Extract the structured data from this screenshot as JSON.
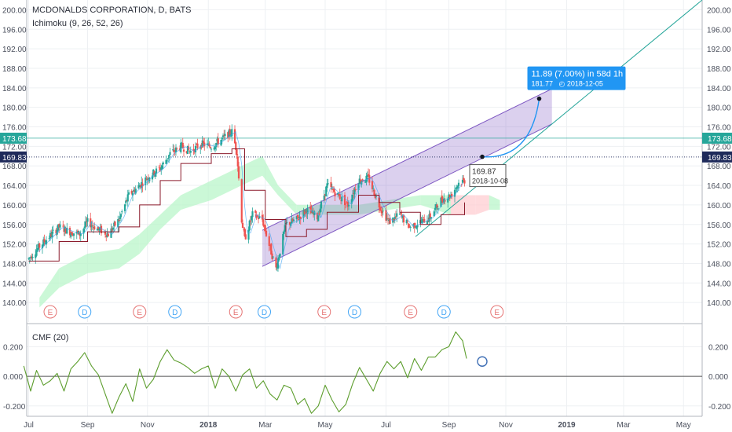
{
  "header": {
    "title": "MCDONALDS CORPORATION, D, BATS",
    "indicator": "Ichimoku (9, 26, 52, 26)",
    "cmf_label": "CMF (20)"
  },
  "chart_data": [
    {
      "type": "candlestick",
      "title": "MCDONALDS CORPORATION, D, BATS",
      "indicator": "Ichimoku (9, 26, 52, 26)",
      "ylim": [
        136,
        202
      ],
      "yticks": [
        "200.00",
        "196.00",
        "192.00",
        "188.00",
        "184.00",
        "180.00",
        "176.00",
        "172.00",
        "168.00",
        "164.00",
        "160.00",
        "156.00",
        "152.00",
        "148.00",
        "144.00",
        "140.00"
      ],
      "xlim": [
        "2017-07-01",
        "2019-05-20"
      ],
      "xticks": [
        {
          "date": "2017-07-03",
          "label": "Jul"
        },
        {
          "date": "2017-09-01",
          "label": "Sep"
        },
        {
          "date": "2017-11-01",
          "label": "Nov"
        },
        {
          "date": "2018-01-02",
          "label": "2018"
        },
        {
          "date": "2018-03-01",
          "label": "Mar"
        },
        {
          "date": "2018-05-01",
          "label": "May"
        },
        {
          "date": "2018-07-02",
          "label": "Jul"
        },
        {
          "date": "2018-09-04",
          "label": "Sep"
        },
        {
          "date": "2018-11-01",
          "label": "Nov"
        },
        {
          "date": "2019-01-02",
          "label": "2019"
        },
        {
          "date": "2019-03-01",
          "label": "Mar"
        },
        {
          "date": "2019-05-01",
          "label": "May"
        }
      ],
      "price_path": [
        [
          "2017-07-03",
          149.0
        ],
        [
          "2017-07-14",
          151.5
        ],
        [
          "2017-07-24",
          153.5
        ],
        [
          "2017-08-03",
          155.5
        ],
        [
          "2017-08-14",
          154.5
        ],
        [
          "2017-08-24",
          154.0
        ],
        [
          "2017-09-01",
          156.5
        ],
        [
          "2017-09-12",
          155.0
        ],
        [
          "2017-09-22",
          154.0
        ],
        [
          "2017-10-03",
          157.0
        ],
        [
          "2017-10-13",
          162.0
        ],
        [
          "2017-10-24",
          164.0
        ],
        [
          "2017-11-03",
          166.0
        ],
        [
          "2017-11-14",
          167.5
        ],
        [
          "2017-11-24",
          170.5
        ],
        [
          "2017-12-05",
          172.0
        ],
        [
          "2017-12-15",
          171.0
        ],
        [
          "2017-12-26",
          172.5
        ],
        [
          "2018-01-05",
          172.0
        ],
        [
          "2018-01-16",
          173.5
        ],
        [
          "2018-01-26",
          175.0
        ],
        [
          "2018-01-31",
          171.0
        ],
        [
          "2018-02-05",
          157.0
        ],
        [
          "2018-02-08",
          153.0
        ],
        [
          "2018-02-16",
          158.0
        ],
        [
          "2018-02-26",
          157.0
        ],
        [
          "2018-03-06",
          151.0
        ],
        [
          "2018-03-12",
          147.0
        ],
        [
          "2018-03-22",
          156.0
        ],
        [
          "2018-04-02",
          157.0
        ],
        [
          "2018-04-12",
          159.0
        ],
        [
          "2018-04-23",
          157.5
        ],
        [
          "2018-05-03",
          164.0
        ],
        [
          "2018-05-14",
          162.0
        ],
        [
          "2018-05-24",
          160.0
        ],
        [
          "2018-06-04",
          165.0
        ],
        [
          "2018-06-14",
          165.5
        ],
        [
          "2018-06-25",
          160.0
        ],
        [
          "2018-07-05",
          156.5
        ],
        [
          "2018-07-16",
          158.0
        ],
        [
          "2018-07-26",
          155.5
        ],
        [
          "2018-08-06",
          156.5
        ],
        [
          "2018-08-16",
          157.5
        ],
        [
          "2018-08-27",
          161.0
        ],
        [
          "2018-09-06",
          162.0
        ],
        [
          "2018-09-14",
          164.5
        ],
        [
          "2018-09-20",
          165.0
        ]
      ],
      "ichimoku_cloud": [
        [
          "2017-07-14",
          139,
          141
        ],
        [
          "2017-08-03",
          143,
          147
        ],
        [
          "2017-09-01",
          146,
          150
        ],
        [
          "2017-10-03",
          147,
          151
        ],
        [
          "2017-10-24",
          150,
          154
        ],
        [
          "2017-11-14",
          155,
          158
        ],
        [
          "2017-12-05",
          159,
          162
        ],
        [
          "2018-01-05",
          161,
          165
        ],
        [
          "2018-02-05",
          164,
          168
        ],
        [
          "2018-02-26",
          166,
          170
        ],
        [
          "2018-03-14",
          162,
          164
        ],
        [
          "2018-04-02",
          158,
          160
        ],
        [
          "2018-05-03",
          158,
          160
        ],
        [
          "2018-06-04",
          158,
          160
        ],
        [
          "2018-07-05",
          159,
          161
        ],
        [
          "2018-08-06",
          160,
          162
        ],
        [
          "2018-09-06",
          158,
          162
        ],
        [
          "2018-10-01",
          158,
          162
        ],
        [
          "2018-10-15",
          159,
          162
        ],
        [
          "2018-10-26",
          159,
          161
        ]
      ],
      "kijun_sen": [
        [
          "2017-07-03",
          148.5
        ],
        [
          "2017-08-03",
          152.5
        ],
        [
          "2017-09-01",
          154.5
        ],
        [
          "2017-10-03",
          155.5
        ],
        [
          "2017-10-24",
          160.0
        ],
        [
          "2017-11-14",
          165.0
        ],
        [
          "2017-12-05",
          168.5
        ],
        [
          "2018-01-05",
          170.5
        ],
        [
          "2018-01-26",
          171.5
        ],
        [
          "2018-02-08",
          163.0
        ],
        [
          "2018-03-01",
          157.0
        ],
        [
          "2018-03-22",
          153.5
        ],
        [
          "2018-04-12",
          155.0
        ],
        [
          "2018-05-03",
          158.5
        ],
        [
          "2018-06-04",
          162.0
        ],
        [
          "2018-06-25",
          160.5
        ],
        [
          "2018-07-16",
          158.5
        ],
        [
          "2018-08-06",
          156.0
        ],
        [
          "2018-08-27",
          158.0
        ],
        [
          "2018-09-20",
          160.5
        ]
      ],
      "earnings_markers": [
        {
          "date": "2017-07-25",
          "label": "E"
        },
        {
          "date": "2017-10-24",
          "label": "E"
        },
        {
          "date": "2018-01-30",
          "label": "E"
        },
        {
          "date": "2018-04-30",
          "label": "E"
        },
        {
          "date": "2018-07-27",
          "label": "E"
        },
        {
          "date": "2018-10-23",
          "label": "E"
        }
      ],
      "dividend_markers": [
        {
          "date": "2017-08-29",
          "label": "D"
        },
        {
          "date": "2017-11-29",
          "label": "D"
        },
        {
          "date": "2018-02-28",
          "label": "D"
        },
        {
          "date": "2018-05-31",
          "label": "D"
        },
        {
          "date": "2018-08-30",
          "label": "D"
        }
      ],
      "price_levels": [
        {
          "value": 173.68,
          "label": "173.68",
          "color": "#26a69a"
        },
        {
          "value": 169.83,
          "label": "169.83",
          "color": "#1e2a5a"
        }
      ],
      "channel": {
        "color": "#7e57c2",
        "upper": [
          [
            "2018-02-26",
            154.8
          ],
          [
            "2018-12-18",
            183.8
          ]
        ],
        "lower": [
          [
            "2018-02-26",
            147.4
          ],
          [
            "2018-12-18",
            176.6
          ]
        ]
      },
      "trendline": {
        "color": "#26a69a",
        "points": [
          [
            "2018-08-01",
            153.5
          ],
          [
            "2019-05-20",
            202.0
          ]
        ]
      },
      "marker_dot": {
        "date": "2018-10-08",
        "price": 169.87
      },
      "date_price_label": {
        "price": "169.87",
        "date": "2018-10-08"
      },
      "projection": {
        "from": {
          "date": "2018-10-08",
          "price": 169.87
        },
        "to": {
          "date": "2018-12-05",
          "price": 181.77
        },
        "label_line1": "11.89 (7.00%) in 58d 1h",
        "label_line2": "181.77",
        "label_date": "2018-12-05",
        "color": "#2196f3"
      },
      "colors": {
        "up": "#26a69a",
        "down": "#ef5350",
        "kijun": "#8b1a2b",
        "tenkan": "#42a5f5",
        "cloud_up": "#b9f6ca",
        "cloud_down": "#ffcdd2"
      }
    },
    {
      "type": "line",
      "title": "CMF (20)",
      "ylim": [
        -0.27,
        0.34
      ],
      "yticks": [
        "0.200",
        "0.000",
        "-0.200"
      ],
      "color": "#5d9e2e",
      "zero_line_color": "#555555",
      "x": [
        "2017-06-28",
        "2017-07-05",
        "2017-07-11",
        "2017-07-18",
        "2017-07-25",
        "2017-08-01",
        "2017-08-08",
        "2017-08-15",
        "2017-08-22",
        "2017-08-29",
        "2017-09-05",
        "2017-09-12",
        "2017-09-19",
        "2017-09-26",
        "2017-10-03",
        "2017-10-10",
        "2017-10-17",
        "2017-10-24",
        "2017-10-31",
        "2017-11-07",
        "2017-11-14",
        "2017-11-21",
        "2017-11-28",
        "2017-12-05",
        "2017-12-12",
        "2017-12-19",
        "2017-12-26",
        "2018-01-02",
        "2018-01-09",
        "2018-01-16",
        "2018-01-23",
        "2018-01-30",
        "2018-02-06",
        "2018-02-13",
        "2018-02-20",
        "2018-02-27",
        "2018-03-06",
        "2018-03-13",
        "2018-03-20",
        "2018-03-27",
        "2018-04-03",
        "2018-04-10",
        "2018-04-17",
        "2018-04-24",
        "2018-05-01",
        "2018-05-08",
        "2018-05-15",
        "2018-05-22",
        "2018-05-29",
        "2018-06-05",
        "2018-06-12",
        "2018-06-19",
        "2018-06-26",
        "2018-07-03",
        "2018-07-10",
        "2018-07-17",
        "2018-07-24",
        "2018-07-31",
        "2018-08-07",
        "2018-08-14",
        "2018-08-21",
        "2018-08-28",
        "2018-09-04",
        "2018-09-11",
        "2018-09-18",
        "2018-09-22"
      ],
      "values": [
        0.07,
        -0.1,
        0.04,
        -0.06,
        -0.03,
        0.02,
        -0.1,
        0.05,
        0.1,
        0.16,
        0.07,
        0.01,
        -0.12,
        -0.25,
        -0.14,
        -0.05,
        -0.17,
        0.05,
        -0.08,
        -0.02,
        0.1,
        0.18,
        0.11,
        0.09,
        0.06,
        0.02,
        0.05,
        0.07,
        -0.08,
        0.05,
        0.0,
        -0.1,
        0.01,
        0.05,
        -0.08,
        -0.03,
        -0.12,
        -0.16,
        -0.06,
        -0.08,
        -0.19,
        -0.15,
        -0.25,
        -0.2,
        -0.06,
        -0.16,
        -0.24,
        -0.19,
        -0.05,
        0.06,
        -0.02,
        -0.1,
        0.02,
        0.1,
        0.05,
        0.1,
        -0.01,
        0.12,
        0.04,
        0.13,
        0.13,
        0.18,
        0.2,
        0.3,
        0.24,
        0.12
      ]
    }
  ]
}
